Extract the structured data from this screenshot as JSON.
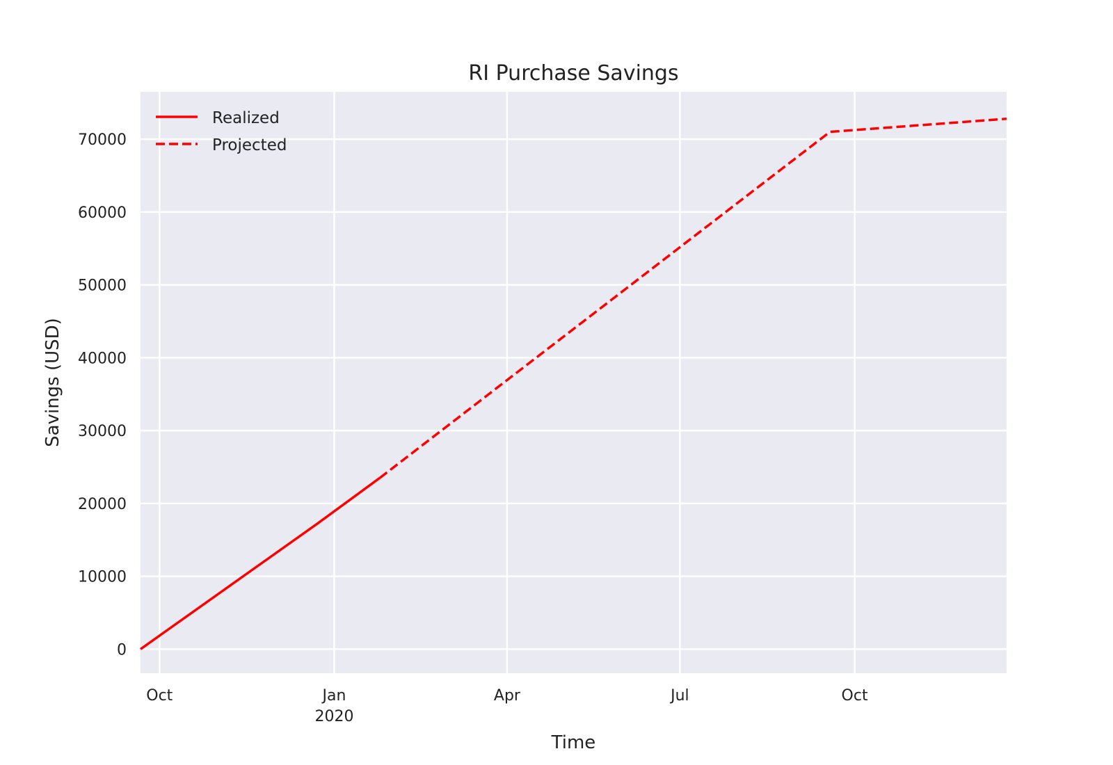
{
  "chart_data": {
    "type": "line",
    "title": "RI Purchase Savings",
    "xlabel": "Time",
    "ylabel": "Savings (USD)",
    "x_type": "date",
    "xlim": [
      "2019-09-21",
      "2020-12-20"
    ],
    "ylim": [
      -3300,
      76500
    ],
    "grid": true,
    "legend_position": "top-left",
    "x_ticks": [
      {
        "date": "2019-10-01",
        "label": "Oct",
        "sublabel": ""
      },
      {
        "date": "2020-01-01",
        "label": "Jan",
        "sublabel": "2020"
      },
      {
        "date": "2020-04-01",
        "label": "Apr",
        "sublabel": ""
      },
      {
        "date": "2020-07-01",
        "label": "Jul",
        "sublabel": ""
      },
      {
        "date": "2020-10-01",
        "label": "Oct",
        "sublabel": ""
      }
    ],
    "y_ticks": [
      {
        "value": 0,
        "label": "0"
      },
      {
        "value": 10000,
        "label": "10000"
      },
      {
        "value": 20000,
        "label": "20000"
      },
      {
        "value": 30000,
        "label": "30000"
      },
      {
        "value": 40000,
        "label": "40000"
      },
      {
        "value": 50000,
        "label": "50000"
      },
      {
        "value": 60000,
        "label": "60000"
      },
      {
        "value": 70000,
        "label": "70000"
      }
    ],
    "series": [
      {
        "name": "Realized",
        "color": "#ff0000",
        "style": "solid",
        "points": [
          {
            "x": "2019-09-21",
            "y": 0
          },
          {
            "x": "2019-12-23",
            "y": 17200
          },
          {
            "x": "2020-01-25",
            "y": 23500
          }
        ]
      },
      {
        "name": "Projected",
        "color": "#ff0000",
        "style": "dashed",
        "points": [
          {
            "x": "2020-01-25",
            "y": 23500
          },
          {
            "x": "2020-09-18",
            "y": 71000
          },
          {
            "x": "2020-12-20",
            "y": 72800
          }
        ]
      }
    ]
  }
}
